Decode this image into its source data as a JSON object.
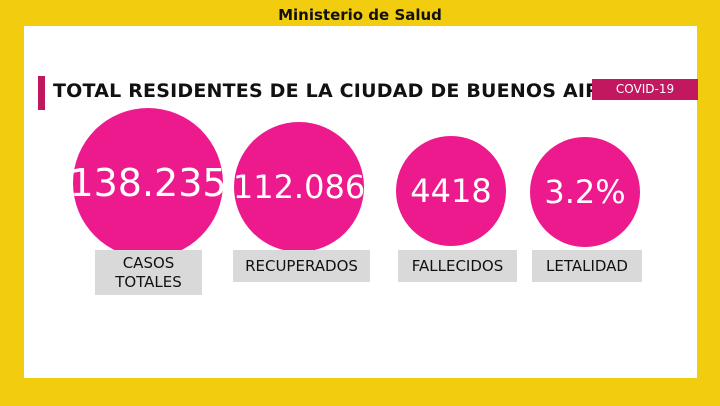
{
  "header": {
    "title": "Ministerio de Salud"
  },
  "main": {
    "title": "TOTAL RESIDENTES DE LA CIUDAD DE BUENOS AIRES",
    "badge": "COVID-19",
    "colors": {
      "frame": "#f1cc0f",
      "circle": "#ec1a8d",
      "accent": "#c2185f"
    },
    "stats": [
      {
        "value": "138.235",
        "label": "CASOS TOTALES"
      },
      {
        "value": "112.086",
        "label": "RECUPERADOS"
      },
      {
        "value": "4418",
        "label": "FALLECIDOS"
      },
      {
        "value": "3.2%",
        "label": "LETALIDAD"
      }
    ]
  }
}
